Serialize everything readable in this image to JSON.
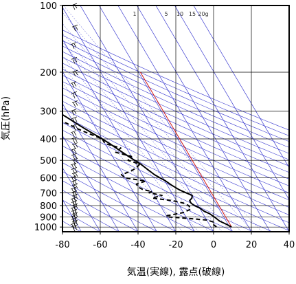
{
  "chart_data": {
    "type": "line",
    "subtype": "skew-T log-P thermodynamic diagram",
    "xlabel": "気温(実線), 露点(破線)",
    "ylabel": "気圧(hPa)",
    "xlim": [
      -80,
      40
    ],
    "ylim": [
      1050,
      100
    ],
    "y_scale": "log",
    "grid": true,
    "x_ticks": [
      -80,
      -60,
      -40,
      -20,
      0,
      20,
      40
    ],
    "x_tick_labels": [
      "-80",
      "-60",
      "-40",
      "-20",
      "0",
      "20",
      "40"
    ],
    "y_ticks": [
      100,
      200,
      300,
      400,
      500,
      600,
      700,
      800,
      900,
      1000
    ],
    "y_tick_labels": [
      "100",
      "200",
      "300",
      "400",
      "500",
      "600",
      "700",
      "800",
      "900",
      "1000"
    ],
    "mixing_ratio_labels": [
      "1",
      "5",
      "10",
      "15",
      "20g"
    ],
    "colors": {
      "temperature": "#000000",
      "dewpoint": "#000000",
      "background_lines": "#3a3ad0",
      "parcel_line": "#d01818",
      "wind_barbs": "#000000"
    },
    "series": [
      {
        "name": "気温",
        "style": "solid",
        "p": [
          1000,
          970,
          940,
          900,
          870,
          850,
          820,
          800,
          780,
          760,
          740,
          720,
          700,
          680,
          650,
          620,
          600,
          580,
          550,
          520,
          500,
          480,
          450,
          420,
          400,
          380,
          350,
          320,
          300,
          280,
          250,
          220,
          200,
          180,
          160,
          140,
          120,
          110,
          100
        ],
        "t": [
          11.0,
          9.0,
          6.5,
          5.0,
          3.5,
          1.5,
          0.0,
          -2.0,
          -3.0,
          -3.0,
          -1.0,
          0.0,
          -2.5,
          -5.0,
          -7.5,
          -9.5,
          -11.5,
          -13.5,
          -15.5,
          -17.5,
          -19.5,
          -21.5,
          -24.5,
          -27.5,
          -30.0,
          -33.0,
          -37.5,
          -42.0,
          -45.5,
          -48.5,
          -52.5,
          -55.0,
          -57.5,
          -60.5,
          -62.0,
          -64.5,
          -67.0,
          -68.5,
          -69.0
        ]
      },
      {
        "name": "露点",
        "style": "dashed",
        "p": [
          1000,
          970,
          950,
          930,
          910,
          900,
          890,
          860,
          830,
          800,
          780,
          760,
          740,
          720,
          700,
          690,
          680,
          660,
          640,
          620,
          600,
          580,
          560,
          540,
          520,
          500,
          480,
          460,
          440,
          420,
          400,
          380,
          360,
          340,
          320,
          310,
          300
        ],
        "td": [
          3.0,
          2.0,
          3.0,
          0.0,
          -12.0,
          -20.0,
          -20.0,
          -10.0,
          -5.0,
          -5.0,
          -7.0,
          -12.0,
          -22.0,
          -16.0,
          -22.0,
          -20.0,
          -24.0,
          -26.0,
          -26.0,
          -20.0,
          -30.0,
          -31.0,
          -25.0,
          -21.0,
          -18.0,
          -23.0,
          -20.0,
          -27.0,
          -23.0,
          -30.0,
          -30.0,
          -35.0,
          -40.0,
          -44.0,
          -51.0,
          -56.0,
          -72.0
        ]
      }
    ]
  }
}
